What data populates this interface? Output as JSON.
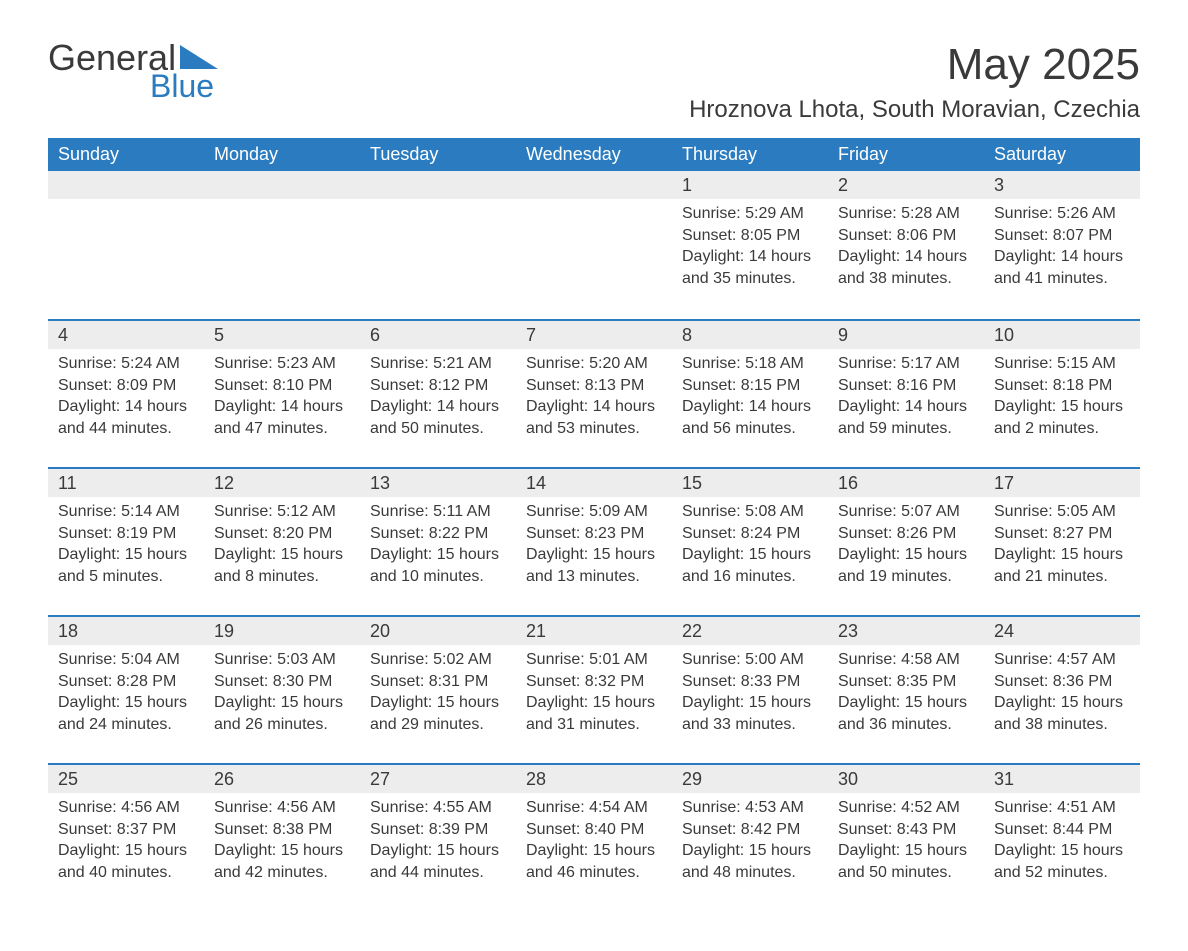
{
  "logo": {
    "word1": "General",
    "word2": "Blue",
    "triangle_color": "#2a7bbf"
  },
  "title": "May 2025",
  "location": "Hroznova Lhota, South Moravian, Czechia",
  "colors": {
    "header_bg": "#2a7bbf",
    "header_text": "#ffffff",
    "daynum_bg": "#ededed",
    "daynum_border": "#2a7bbf",
    "body_text": "#3a3a3a",
    "page_bg": "#ffffff"
  },
  "day_labels": [
    "Sunday",
    "Monday",
    "Tuesday",
    "Wednesday",
    "Thursday",
    "Friday",
    "Saturday"
  ],
  "first_weekday_index": 4,
  "days": [
    {
      "n": "1",
      "sunrise": "Sunrise: 5:29 AM",
      "sunset": "Sunset: 8:05 PM",
      "daylight": "Daylight: 14 hours and 35 minutes."
    },
    {
      "n": "2",
      "sunrise": "Sunrise: 5:28 AM",
      "sunset": "Sunset: 8:06 PM",
      "daylight": "Daylight: 14 hours and 38 minutes."
    },
    {
      "n": "3",
      "sunrise": "Sunrise: 5:26 AM",
      "sunset": "Sunset: 8:07 PM",
      "daylight": "Daylight: 14 hours and 41 minutes."
    },
    {
      "n": "4",
      "sunrise": "Sunrise: 5:24 AM",
      "sunset": "Sunset: 8:09 PM",
      "daylight": "Daylight: 14 hours and 44 minutes."
    },
    {
      "n": "5",
      "sunrise": "Sunrise: 5:23 AM",
      "sunset": "Sunset: 8:10 PM",
      "daylight": "Daylight: 14 hours and 47 minutes."
    },
    {
      "n": "6",
      "sunrise": "Sunrise: 5:21 AM",
      "sunset": "Sunset: 8:12 PM",
      "daylight": "Daylight: 14 hours and 50 minutes."
    },
    {
      "n": "7",
      "sunrise": "Sunrise: 5:20 AM",
      "sunset": "Sunset: 8:13 PM",
      "daylight": "Daylight: 14 hours and 53 minutes."
    },
    {
      "n": "8",
      "sunrise": "Sunrise: 5:18 AM",
      "sunset": "Sunset: 8:15 PM",
      "daylight": "Daylight: 14 hours and 56 minutes."
    },
    {
      "n": "9",
      "sunrise": "Sunrise: 5:17 AM",
      "sunset": "Sunset: 8:16 PM",
      "daylight": "Daylight: 14 hours and 59 minutes."
    },
    {
      "n": "10",
      "sunrise": "Sunrise: 5:15 AM",
      "sunset": "Sunset: 8:18 PM",
      "daylight": "Daylight: 15 hours and 2 minutes."
    },
    {
      "n": "11",
      "sunrise": "Sunrise: 5:14 AM",
      "sunset": "Sunset: 8:19 PM",
      "daylight": "Daylight: 15 hours and 5 minutes."
    },
    {
      "n": "12",
      "sunrise": "Sunrise: 5:12 AM",
      "sunset": "Sunset: 8:20 PM",
      "daylight": "Daylight: 15 hours and 8 minutes."
    },
    {
      "n": "13",
      "sunrise": "Sunrise: 5:11 AM",
      "sunset": "Sunset: 8:22 PM",
      "daylight": "Daylight: 15 hours and 10 minutes."
    },
    {
      "n": "14",
      "sunrise": "Sunrise: 5:09 AM",
      "sunset": "Sunset: 8:23 PM",
      "daylight": "Daylight: 15 hours and 13 minutes."
    },
    {
      "n": "15",
      "sunrise": "Sunrise: 5:08 AM",
      "sunset": "Sunset: 8:24 PM",
      "daylight": "Daylight: 15 hours and 16 minutes."
    },
    {
      "n": "16",
      "sunrise": "Sunrise: 5:07 AM",
      "sunset": "Sunset: 8:26 PM",
      "daylight": "Daylight: 15 hours and 19 minutes."
    },
    {
      "n": "17",
      "sunrise": "Sunrise: 5:05 AM",
      "sunset": "Sunset: 8:27 PM",
      "daylight": "Daylight: 15 hours and 21 minutes."
    },
    {
      "n": "18",
      "sunrise": "Sunrise: 5:04 AM",
      "sunset": "Sunset: 8:28 PM",
      "daylight": "Daylight: 15 hours and 24 minutes."
    },
    {
      "n": "19",
      "sunrise": "Sunrise: 5:03 AM",
      "sunset": "Sunset: 8:30 PM",
      "daylight": "Daylight: 15 hours and 26 minutes."
    },
    {
      "n": "20",
      "sunrise": "Sunrise: 5:02 AM",
      "sunset": "Sunset: 8:31 PM",
      "daylight": "Daylight: 15 hours and 29 minutes."
    },
    {
      "n": "21",
      "sunrise": "Sunrise: 5:01 AM",
      "sunset": "Sunset: 8:32 PM",
      "daylight": "Daylight: 15 hours and 31 minutes."
    },
    {
      "n": "22",
      "sunrise": "Sunrise: 5:00 AM",
      "sunset": "Sunset: 8:33 PM",
      "daylight": "Daylight: 15 hours and 33 minutes."
    },
    {
      "n": "23",
      "sunrise": "Sunrise: 4:58 AM",
      "sunset": "Sunset: 8:35 PM",
      "daylight": "Daylight: 15 hours and 36 minutes."
    },
    {
      "n": "24",
      "sunrise": "Sunrise: 4:57 AM",
      "sunset": "Sunset: 8:36 PM",
      "daylight": "Daylight: 15 hours and 38 minutes."
    },
    {
      "n": "25",
      "sunrise": "Sunrise: 4:56 AM",
      "sunset": "Sunset: 8:37 PM",
      "daylight": "Daylight: 15 hours and 40 minutes."
    },
    {
      "n": "26",
      "sunrise": "Sunrise: 4:56 AM",
      "sunset": "Sunset: 8:38 PM",
      "daylight": "Daylight: 15 hours and 42 minutes."
    },
    {
      "n": "27",
      "sunrise": "Sunrise: 4:55 AM",
      "sunset": "Sunset: 8:39 PM",
      "daylight": "Daylight: 15 hours and 44 minutes."
    },
    {
      "n": "28",
      "sunrise": "Sunrise: 4:54 AM",
      "sunset": "Sunset: 8:40 PM",
      "daylight": "Daylight: 15 hours and 46 minutes."
    },
    {
      "n": "29",
      "sunrise": "Sunrise: 4:53 AM",
      "sunset": "Sunset: 8:42 PM",
      "daylight": "Daylight: 15 hours and 48 minutes."
    },
    {
      "n": "30",
      "sunrise": "Sunrise: 4:52 AM",
      "sunset": "Sunset: 8:43 PM",
      "daylight": "Daylight: 15 hours and 50 minutes."
    },
    {
      "n": "31",
      "sunrise": "Sunrise: 4:51 AM",
      "sunset": "Sunset: 8:44 PM",
      "daylight": "Daylight: 15 hours and 52 minutes."
    }
  ]
}
